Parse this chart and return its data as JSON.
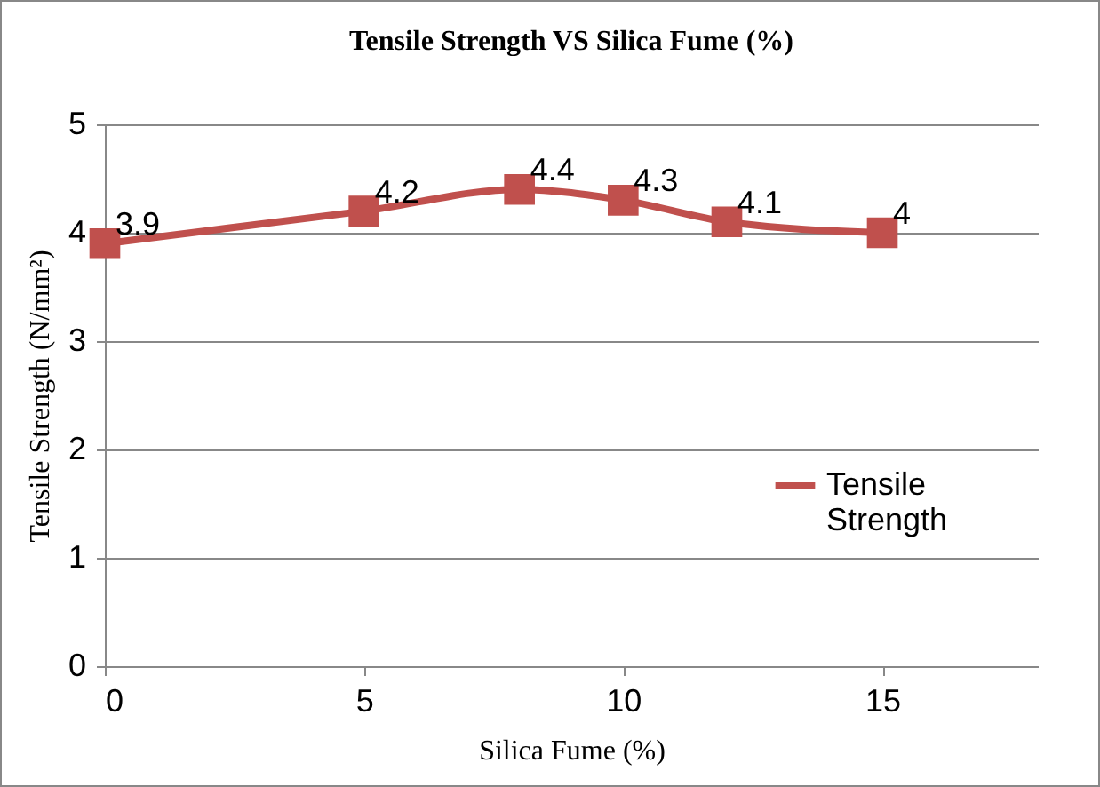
{
  "chart_data": {
    "type": "line",
    "title": "Tensile Strength VS Silica Fume (%)",
    "xlabel": "Silica Fume (%)",
    "ylabel": "Tensile Strength (N/mm²)",
    "x": [
      0,
      5,
      8,
      10,
      12,
      15
    ],
    "series": [
      {
        "name": "Tensile Strength",
        "color": "#c0504d",
        "values": [
          3.9,
          4.2,
          4.4,
          4.3,
          4.1,
          4
        ]
      }
    ],
    "xlim": [
      0,
      18
    ],
    "xticks": [
      0,
      5,
      10,
      15
    ],
    "ylim": [
      0,
      5
    ],
    "yticks": [
      0,
      1,
      2,
      3,
      4,
      5
    ],
    "grid": "y",
    "legend": "right",
    "marker": "square",
    "line_style": "solid",
    "data_labels": true
  }
}
